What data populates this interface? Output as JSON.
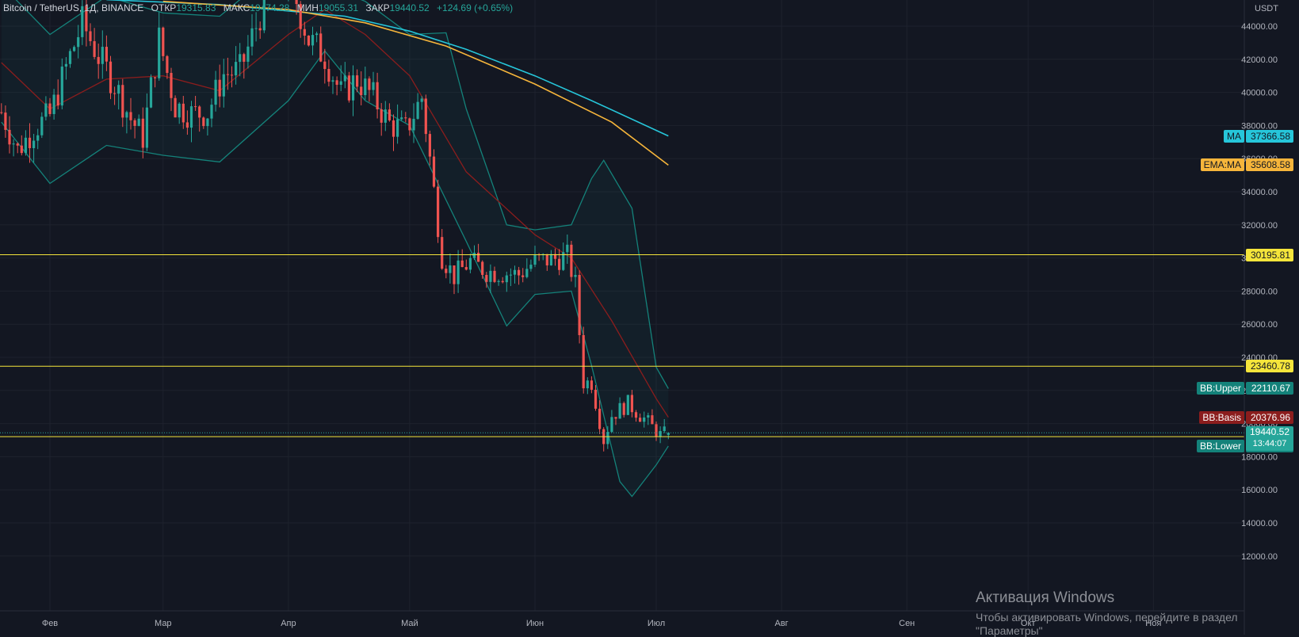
{
  "legend": {
    "symbol": "Bitcoin / TetherUS, 1Д, BINANCE",
    "open_label": "ОТКР",
    "open_value": "19315.83",
    "high_label": "МАКС",
    "high_value": "19474.28",
    "low_label": "МИН",
    "low_value": "19055.31",
    "close_label": "ЗАКР",
    "close_value": "19440.52",
    "change": "+124.69 (+0.65%)"
  },
  "price_scale": {
    "currency": "USDT",
    "ticks": [
      "44000.00",
      "42000.00",
      "40000.00",
      "38000.00",
      "36000.00",
      "34000.00",
      "32000.00",
      "30000.00",
      "28000.00",
      "26000.00",
      "24000.00",
      "22000.00",
      "20000.00",
      "18000.00",
      "16000.00",
      "14000.00",
      "12000.00"
    ]
  },
  "time_scale": {
    "labels": [
      "Фев",
      "Мар",
      "Апр",
      "Май",
      "Июн",
      "Июл",
      "Авг",
      "Сен",
      "Окт",
      "Ноя"
    ]
  },
  "price_tags": [
    {
      "label": "MA",
      "value": "37366.58",
      "price": 37366.58,
      "color": "#26c6da",
      "text_color": "#131722"
    },
    {
      "label": "EMA:MA",
      "value": "35608.58",
      "price": 35608.58,
      "color": "#f6b53b",
      "text_color": "#131722"
    },
    {
      "label": "",
      "value": "30195.81",
      "price": 30195.81,
      "color": "#f5e53b",
      "text_color": "#131722"
    },
    {
      "label": "",
      "value": "23460.78",
      "price": 23460.78,
      "color": "#f5e53b",
      "text_color": "#131722"
    },
    {
      "label": "BB:Upper",
      "value": "22110.67",
      "price": 22110.67,
      "color": "#14827a",
      "text_color": "#ffffff"
    },
    {
      "label": "BB:Basis",
      "value": "20376.96",
      "price": 20376.96,
      "color": "#8b1d1d",
      "text_color": "#ffffff"
    },
    {
      "label": "",
      "value": "19208.35",
      "price": 19208.35,
      "color": "#f5e53b",
      "text_color": "#131722"
    },
    {
      "label": "BB:Lower",
      "value": "18643.24",
      "price": 18643.24,
      "color": "#14827a",
      "text_color": "#ffffff"
    }
  ],
  "last_price": {
    "value": "19440.52",
    "countdown": "13:44:07",
    "color": "#26a69a"
  },
  "watermark": {
    "title": "Активация Windows",
    "line2": "Чтобы активировать Windows, перейдите в раздел",
    "line3": "\"Параметры\""
  },
  "chart_data": {
    "type": "candlestick",
    "title": "Bitcoin / TetherUS, 1Д, BINANCE",
    "ylabel": "USDT",
    "ylim": [
      11000,
      45600
    ],
    "x_labels": [
      "Фев",
      "Мар",
      "Апр",
      "Май",
      "Июн",
      "Июл",
      "Авг",
      "Сен",
      "Окт",
      "Ноя"
    ],
    "grid": true,
    "colors": {
      "up": "#26a69a",
      "down": "#ef5350",
      "ma": "#26c6da",
      "ema": "#f6b53b",
      "bb": "#14827a",
      "basis": "#8b1d1d",
      "hline": "#f5e53b"
    },
    "horizontal_lines": [
      30195.81,
      23460.78,
      19208.35
    ],
    "close_series": [
      {
        "date": "2022-01-20",
        "close": 38800
      },
      {
        "date": "2022-01-24",
        "close": 36500
      },
      {
        "date": "2022-01-28",
        "close": 37800
      },
      {
        "date": "2022-02-01",
        "close": 38600
      },
      {
        "date": "2022-02-05",
        "close": 41500
      },
      {
        "date": "2022-02-09",
        "close": 44200
      },
      {
        "date": "2022-02-13",
        "close": 42200
      },
      {
        "date": "2022-02-17",
        "close": 40500
      },
      {
        "date": "2022-02-21",
        "close": 38400
      },
      {
        "date": "2022-02-24",
        "close": 37300
      },
      {
        "date": "2022-02-28",
        "close": 43200
      },
      {
        "date": "2022-03-04",
        "close": 39200
      },
      {
        "date": "2022-03-08",
        "close": 38700
      },
      {
        "date": "2022-03-12",
        "close": 38800
      },
      {
        "date": "2022-03-16",
        "close": 41100
      },
      {
        "date": "2022-03-20",
        "close": 41300
      },
      {
        "date": "2022-03-24",
        "close": 44000
      },
      {
        "date": "2022-03-28",
        "close": 47000
      },
      {
        "date": "2022-04-02",
        "close": 46300
      },
      {
        "date": "2022-04-06",
        "close": 43200
      },
      {
        "date": "2022-04-10",
        "close": 42200
      },
      {
        "date": "2022-04-14",
        "close": 39900
      },
      {
        "date": "2022-04-18",
        "close": 40800
      },
      {
        "date": "2022-04-22",
        "close": 39700
      },
      {
        "date": "2022-04-26",
        "close": 38100
      },
      {
        "date": "2022-04-30",
        "close": 37700
      },
      {
        "date": "2022-05-04",
        "close": 39700
      },
      {
        "date": "2022-05-06",
        "close": 36000
      },
      {
        "date": "2022-05-09",
        "close": 30100
      },
      {
        "date": "2022-05-12",
        "close": 28900
      },
      {
        "date": "2022-05-16",
        "close": 29800
      },
      {
        "date": "2022-05-20",
        "close": 29200
      },
      {
        "date": "2022-05-24",
        "close": 29100
      },
      {
        "date": "2022-05-28",
        "close": 29000
      },
      {
        "date": "2022-06-01",
        "close": 29800
      },
      {
        "date": "2022-06-05",
        "close": 29900
      },
      {
        "date": "2022-06-09",
        "close": 30100
      },
      {
        "date": "2022-06-11",
        "close": 28400
      },
      {
        "date": "2022-06-13",
        "close": 22500
      },
      {
        "date": "2022-06-15",
        "close": 22500
      },
      {
        "date": "2022-06-18",
        "close": 19000
      },
      {
        "date": "2022-06-20",
        "close": 20500
      },
      {
        "date": "2022-06-24",
        "close": 21200
      },
      {
        "date": "2022-06-28",
        "close": 20300
      },
      {
        "date": "2022-07-02",
        "close": 19300
      },
      {
        "date": "2022-07-04",
        "close": 19440.52
      }
    ],
    "ma_series": [
      {
        "date": "2022-02-15",
        "value": 45600
      },
      {
        "date": "2022-03-15",
        "value": 45300
      },
      {
        "date": "2022-04-15",
        "value": 44600
      },
      {
        "date": "2022-05-01",
        "value": 43700
      },
      {
        "date": "2022-05-15",
        "value": 42600
      },
      {
        "date": "2022-06-01",
        "value": 41000
      },
      {
        "date": "2022-06-15",
        "value": 39500
      },
      {
        "date": "2022-07-04",
        "value": 37366.58
      }
    ],
    "ema_series": [
      {
        "date": "2022-03-01",
        "value": 45500
      },
      {
        "date": "2022-04-01",
        "value": 45000
      },
      {
        "date": "2022-04-20",
        "value": 44200
      },
      {
        "date": "2022-05-10",
        "value": 42800
      },
      {
        "date": "2022-06-01",
        "value": 40500
      },
      {
        "date": "2022-06-20",
        "value": 38200
      },
      {
        "date": "2022-07-04",
        "value": 35608.58
      }
    ],
    "bb_basis": [
      {
        "date": "2022-01-20",
        "value": 41800
      },
      {
        "date": "2022-02-01",
        "value": 39000
      },
      {
        "date": "2022-02-15",
        "value": 40800
      },
      {
        "date": "2022-03-01",
        "value": 41000
      },
      {
        "date": "2022-03-15",
        "value": 40100
      },
      {
        "date": "2022-04-01",
        "value": 43500
      },
      {
        "date": "2022-04-10",
        "value": 45000
      },
      {
        "date": "2022-04-20",
        "value": 43500
      },
      {
        "date": "2022-05-01",
        "value": 41000
      },
      {
        "date": "2022-05-15",
        "value": 35200
      },
      {
        "date": "2022-06-01",
        "value": 31400
      },
      {
        "date": "2022-06-10",
        "value": 30000
      },
      {
        "date": "2022-06-20",
        "value": 26200
      },
      {
        "date": "2022-07-01",
        "value": 21500
      },
      {
        "date": "2022-07-04",
        "value": 20376.96
      }
    ],
    "bb_upper": [
      {
        "date": "2022-01-20",
        "value": 46500
      },
      {
        "date": "2022-02-01",
        "value": 43500
      },
      {
        "date": "2022-02-15",
        "value": 45800
      },
      {
        "date": "2022-03-01",
        "value": 44800
      },
      {
        "date": "2022-03-15",
        "value": 44600
      },
      {
        "date": "2022-04-01",
        "value": 48000
      },
      {
        "date": "2022-04-10",
        "value": 46500
      },
      {
        "date": "2022-04-20",
        "value": 45500
      },
      {
        "date": "2022-05-01",
        "value": 43500
      },
      {
        "date": "2022-05-10",
        "value": 43600
      },
      {
        "date": "2022-05-15",
        "value": 39000
      },
      {
        "date": "2022-05-25",
        "value": 32000
      },
      {
        "date": "2022-06-01",
        "value": 31700
      },
      {
        "date": "2022-06-10",
        "value": 32000
      },
      {
        "date": "2022-06-15",
        "value": 34800
      },
      {
        "date": "2022-06-18",
        "value": 35900
      },
      {
        "date": "2022-06-25",
        "value": 33000
      },
      {
        "date": "2022-07-01",
        "value": 23400
      },
      {
        "date": "2022-07-04",
        "value": 22110.67
      }
    ],
    "bb_lower": [
      {
        "date": "2022-01-20",
        "value": 38200
      },
      {
        "date": "2022-02-01",
        "value": 34500
      },
      {
        "date": "2022-02-15",
        "value": 36800
      },
      {
        "date": "2022-03-01",
        "value": 36200
      },
      {
        "date": "2022-03-15",
        "value": 35800
      },
      {
        "date": "2022-04-01",
        "value": 39500
      },
      {
        "date": "2022-04-10",
        "value": 42500
      },
      {
        "date": "2022-04-20",
        "value": 39500
      },
      {
        "date": "2022-05-01",
        "value": 38000
      },
      {
        "date": "2022-05-15",
        "value": 31000
      },
      {
        "date": "2022-05-25",
        "value": 25900
      },
      {
        "date": "2022-06-01",
        "value": 27800
      },
      {
        "date": "2022-06-10",
        "value": 28000
      },
      {
        "date": "2022-06-15",
        "value": 23500
      },
      {
        "date": "2022-06-22",
        "value": 16500
      },
      {
        "date": "2022-06-25",
        "value": 15600
      },
      {
        "date": "2022-07-01",
        "value": 17500
      },
      {
        "date": "2022-07-04",
        "value": 18643.24
      }
    ]
  }
}
